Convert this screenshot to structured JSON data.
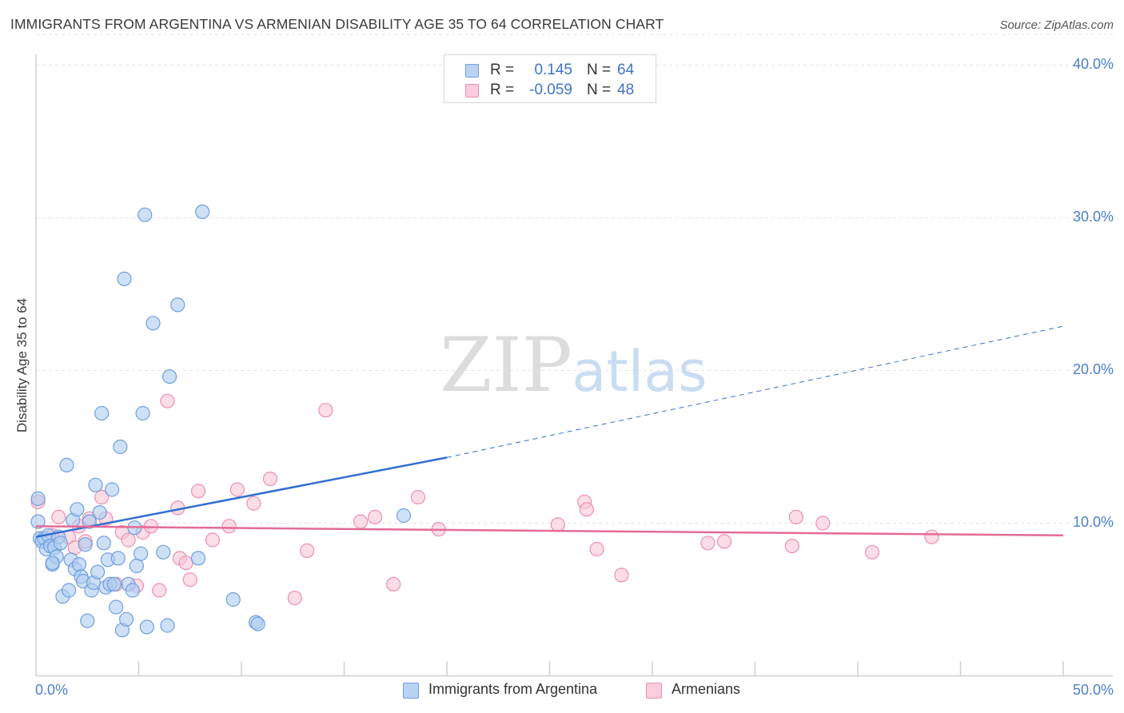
{
  "header": {
    "title": "IMMIGRANTS FROM ARGENTINA VS ARMENIAN DISABILITY AGE 35 TO 64 CORRELATION CHART",
    "source": "Source: ZipAtlas.com"
  },
  "watermark": {
    "zip": "ZIP",
    "atlas": "atlas"
  },
  "legend": {
    "rows": [
      {
        "r_label": "R =",
        "r_value": "0.145",
        "n_label": "N =",
        "n_value": "64"
      },
      {
        "r_label": "R =",
        "r_value": "-0.059",
        "n_label": "N =",
        "n_value": "48"
      }
    ]
  },
  "bottom_legend": {
    "items": [
      {
        "label": "Immigrants from Argentina"
      },
      {
        "label": "Armenians"
      }
    ]
  },
  "colors": {
    "blue_fill": "#aecbf0",
    "blue_stroke": "#6f9fe0",
    "blue_line": "#2f6fcf",
    "pink_fill": "#f8c6d6",
    "pink_stroke": "#ec8fb0",
    "pink_line": "#e46a96",
    "grid": "#e2e2e2",
    "axis_text": "#4a7fcf"
  },
  "chart_data": {
    "type": "scatter",
    "title": "IMMIGRANTS FROM ARGENTINA VS ARMENIAN DISABILITY AGE 35 TO 64 CORRELATION CHART",
    "xlabel": "",
    "ylabel": "Disability Age 35 to 64",
    "xlim": [
      0,
      50
    ],
    "ylim": [
      0,
      42
    ],
    "x_tick_labels": [
      "0.0%",
      "50.0%"
    ],
    "y_ticks": [
      10,
      20,
      30,
      40
    ],
    "y_tick_labels": [
      "10.0%",
      "20.0%",
      "30.0%",
      "40.0%"
    ],
    "legend_position": "top-center",
    "series": [
      {
        "name": "Immigrants from Argentina",
        "color": "#aecbf0",
        "r": 0.145,
        "n": 64,
        "trend": {
          "x_start": 0,
          "y_start": 9.1,
          "x_solid_end": 20.0,
          "y_solid_end": 14.3,
          "x_dash_end": 50,
          "y_dash_end": 22.9
        },
        "points": [
          [
            0.1,
            10.1
          ],
          [
            0.1,
            11.6
          ],
          [
            0.2,
            9.0
          ],
          [
            0.3,
            8.8
          ],
          [
            0.4,
            9.0
          ],
          [
            0.5,
            8.3
          ],
          [
            0.6,
            9.2
          ],
          [
            0.7,
            8.5
          ],
          [
            0.8,
            7.3
          ],
          [
            0.9,
            8.4
          ],
          [
            1.0,
            7.8
          ],
          [
            1.1,
            9.1
          ],
          [
            1.2,
            8.7
          ],
          [
            1.3,
            5.2
          ],
          [
            1.5,
            13.8
          ],
          [
            1.6,
            5.6
          ],
          [
            1.7,
            7.6
          ],
          [
            1.8,
            10.2
          ],
          [
            1.9,
            7.0
          ],
          [
            2.0,
            10.9
          ],
          [
            2.1,
            7.3
          ],
          [
            2.2,
            6.5
          ],
          [
            2.3,
            6.2
          ],
          [
            2.4,
            8.6
          ],
          [
            2.5,
            3.6
          ],
          [
            2.6,
            10.1
          ],
          [
            2.7,
            5.6
          ],
          [
            2.8,
            6.1
          ],
          [
            2.9,
            12.5
          ],
          [
            3.0,
            6.8
          ],
          [
            3.1,
            10.7
          ],
          [
            3.2,
            17.2
          ],
          [
            3.3,
            8.7
          ],
          [
            3.4,
            5.8
          ],
          [
            3.5,
            7.6
          ],
          [
            3.6,
            6.0
          ],
          [
            3.7,
            12.2
          ],
          [
            3.8,
            6.0
          ],
          [
            3.9,
            4.5
          ],
          [
            4.0,
            7.7
          ],
          [
            4.1,
            15.0
          ],
          [
            4.2,
            3.0
          ],
          [
            4.3,
            26.0
          ],
          [
            4.4,
            3.7
          ],
          [
            4.5,
            6.0
          ],
          [
            4.7,
            5.6
          ],
          [
            4.8,
            9.7
          ],
          [
            4.9,
            7.2
          ],
          [
            5.1,
            8.0
          ],
          [
            5.2,
            17.2
          ],
          [
            5.3,
            30.2
          ],
          [
            5.4,
            3.2
          ],
          [
            5.7,
            23.1
          ],
          [
            6.2,
            8.1
          ],
          [
            6.4,
            3.3
          ],
          [
            6.5,
            19.6
          ],
          [
            6.9,
            24.3
          ],
          [
            7.9,
            7.7
          ],
          [
            8.1,
            30.4
          ],
          [
            9.6,
            5.0
          ],
          [
            10.7,
            3.5
          ],
          [
            10.8,
            3.4
          ],
          [
            17.9,
            10.5
          ],
          [
            0.8,
            7.4
          ]
        ]
      },
      {
        "name": "Armenians",
        "color": "#f8c6d6",
        "r": -0.059,
        "n": 48,
        "trend": {
          "x_start": 0,
          "y_start": 9.8,
          "x_end": 50,
          "y_end": 9.2
        },
        "points": [
          [
            0.1,
            11.4
          ],
          [
            0.8,
            9.2
          ],
          [
            1.1,
            10.4
          ],
          [
            1.6,
            9.1
          ],
          [
            1.9,
            8.4
          ],
          [
            2.1,
            9.8
          ],
          [
            2.4,
            8.8
          ],
          [
            2.6,
            10.3
          ],
          [
            3.2,
            11.7
          ],
          [
            3.4,
            10.3
          ],
          [
            3.9,
            6.0
          ],
          [
            4.2,
            9.4
          ],
          [
            4.5,
            8.9
          ],
          [
            4.9,
            5.9
          ],
          [
            5.2,
            9.4
          ],
          [
            5.6,
            9.8
          ],
          [
            6.0,
            5.6
          ],
          [
            6.4,
            18.0
          ],
          [
            6.9,
            11.0
          ],
          [
            7.0,
            7.7
          ],
          [
            7.3,
            7.4
          ],
          [
            7.5,
            6.3
          ],
          [
            7.9,
            12.1
          ],
          [
            8.6,
            8.9
          ],
          [
            9.4,
            9.8
          ],
          [
            9.8,
            12.2
          ],
          [
            10.6,
            11.3
          ],
          [
            11.4,
            12.9
          ],
          [
            12.6,
            5.1
          ],
          [
            13.2,
            8.2
          ],
          [
            14.1,
            17.4
          ],
          [
            15.8,
            10.1
          ],
          [
            16.5,
            10.4
          ],
          [
            17.4,
            6.0
          ],
          [
            18.6,
            11.7
          ],
          [
            19.6,
            9.6
          ],
          [
            25.4,
            9.9
          ],
          [
            26.7,
            11.4
          ],
          [
            26.8,
            10.9
          ],
          [
            27.3,
            8.3
          ],
          [
            28.5,
            6.6
          ],
          [
            32.7,
            8.7
          ],
          [
            33.5,
            8.8
          ],
          [
            36.8,
            8.5
          ],
          [
            37.0,
            10.4
          ],
          [
            38.3,
            10.0
          ],
          [
            40.7,
            8.1
          ],
          [
            43.6,
            9.1
          ]
        ]
      }
    ]
  }
}
